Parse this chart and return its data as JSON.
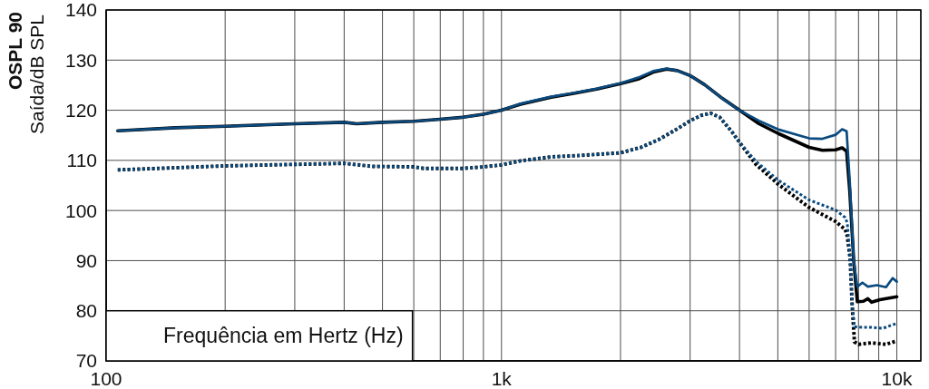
{
  "chart_data": {
    "type": "line",
    "xlabel": "Frequência em Hertz (Hz)",
    "ylabel": "OSPL 90\nSaída/dB SPL",
    "log": "x",
    "grid": true,
    "xlim": [
      100,
      11500
    ],
    "xticks": [
      100,
      {
        "value": 200,
        "label": null
      },
      {
        "value": 300,
        "label": null
      },
      {
        "value": 400,
        "label": null
      },
      {
        "value": 500,
        "label": null
      },
      {
        "value": 600,
        "label": null
      },
      {
        "value": 700,
        "label": null
      },
      {
        "value": 800,
        "label": null
      },
      {
        "value": 900,
        "label": null
      },
      {
        "value": 1000,
        "label": "1k"
      },
      {
        "value": 2000,
        "label": null
      },
      {
        "value": 3000,
        "label": null
      },
      {
        "value": 4000,
        "label": null
      },
      {
        "value": 5000,
        "label": null
      },
      {
        "value": 6000,
        "label": null
      },
      {
        "value": 7000,
        "label": null
      },
      {
        "value": 8000,
        "label": null
      },
      {
        "value": 9000,
        "label": null
      },
      {
        "value": 10000,
        "label": "10k"
      }
    ],
    "ylim": [
      70,
      140
    ],
    "yticks": [
      70,
      80,
      90,
      100,
      110,
      120,
      130,
      140
    ],
    "series": [
      {
        "color": "#000000",
        "line_style": "solid",
        "x": [
          107,
          150,
          200,
          300,
          400,
          430,
          500,
          600,
          700,
          800,
          900,
          1000,
          1117,
          1336,
          1511,
          1741,
          2000,
          2215,
          2419,
          2618,
          2786,
          3000,
          3264,
          3628,
          4000,
          4481,
          5000,
          6000,
          6486,
          7000,
          7272,
          7464,
          7600,
          7780,
          7943,
          8229,
          8450,
          8630,
          9064,
          10000
        ],
        "values": [
          115.9,
          116.5,
          116.8,
          117.3,
          117.6,
          117.3,
          117.6,
          117.8,
          118.2,
          118.6,
          119.2,
          120.0,
          121.2,
          122.6,
          123.3,
          124.2,
          125.3,
          126.2,
          127.6,
          128.2,
          127.9,
          126.9,
          125.1,
          122.3,
          120.0,
          117.3,
          115.4,
          112.6,
          112.0,
          112.1,
          112.5,
          111.8,
          104,
          90,
          81.8,
          81.9,
          82.4,
          81.7,
          82.2,
          82.8
        ]
      },
      {
        "color": "#000000",
        "line_style": "dotted",
        "x": [
          107,
          200,
          300,
          400,
          472,
          600,
          636,
          800,
          900,
          1000,
          1117,
          1336,
          1594,
          2000,
          2255,
          2506,
          2786,
          3000,
          3206,
          3380,
          3565,
          3825,
          4000,
          4401,
          5000,
          6000,
          7000,
          7403,
          7494,
          7620,
          7705,
          7812,
          7997,
          8620,
          9389,
          10000
        ],
        "values": [
          108.1,
          108.9,
          109.2,
          109.4,
          108.8,
          108.7,
          108.4,
          108.4,
          108.7,
          109.1,
          109.9,
          110.7,
          111.0,
          111.5,
          112.6,
          114.2,
          116.3,
          117.9,
          119.0,
          119.4,
          118.6,
          115.7,
          113.6,
          109.2,
          105.3,
          100.6,
          97.8,
          96.2,
          94.9,
          90.4,
          81.5,
          73.8,
          73.3,
          73.6,
          73.3,
          74.0
        ]
      },
      {
        "color": "#0a4a7f",
        "line_style": "dotted",
        "x": [
          107,
          200,
          300,
          400,
          472,
          600,
          636,
          800,
          900,
          1000,
          1117,
          1336,
          1594,
          2000,
          2255,
          2506,
          2786,
          3000,
          3206,
          3380,
          3565,
          3825,
          4000,
          4401,
          5000,
          6000,
          7000,
          7403,
          7494,
          7620,
          7705,
          7812,
          8185,
          8620,
          9226,
          10000
        ],
        "values": [
          108.1,
          108.9,
          109.2,
          109.4,
          108.8,
          108.7,
          108.4,
          108.4,
          108.7,
          109.1,
          109.9,
          110.7,
          111.0,
          111.5,
          112.6,
          114.2,
          116.3,
          117.9,
          119.0,
          119.4,
          118.6,
          115.7,
          113.6,
          109.8,
          106.1,
          102.1,
          100.1,
          98.6,
          97.5,
          90.4,
          81.5,
          76.8,
          76.7,
          76.7,
          76.5,
          77.5
        ]
      },
      {
        "color": "#0a4a7f",
        "line_style": "solid",
        "x": [
          107,
          150,
          200,
          300,
          400,
          430,
          500,
          600,
          700,
          800,
          900,
          1000,
          1117,
          1336,
          1511,
          1741,
          2000,
          2215,
          2419,
          2618,
          2786,
          3000,
          3264,
          3628,
          4000,
          4481,
          5000,
          6000,
          6486,
          7000,
          7272,
          7464,
          7600,
          7780,
          7943,
          8185,
          8450,
          8906,
          9389,
          9759,
          10000
        ],
        "values": [
          115.9,
          116.5,
          116.8,
          117.3,
          117.6,
          117.3,
          117.6,
          117.8,
          118.2,
          118.6,
          119.2,
          120.0,
          121.3,
          122.7,
          123.4,
          124.3,
          125.4,
          126.5,
          127.8,
          128.3,
          127.9,
          126.9,
          125.1,
          122.3,
          120.0,
          117.9,
          116.2,
          114.4,
          114.3,
          115.1,
          116.2,
          115.8,
          106,
          90,
          84.8,
          85.6,
          84.8,
          85.1,
          84.7,
          86.5,
          85.8
        ]
      }
    ]
  }
}
